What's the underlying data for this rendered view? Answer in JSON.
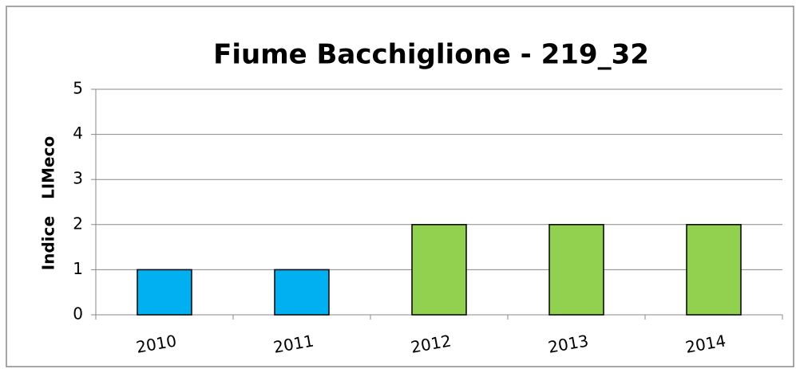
{
  "chart_data": {
    "type": "bar",
    "title": "Fiume Bacchiglione - 219_32",
    "y_label": "Indice   LIMeco",
    "categories": [
      "2010",
      "2011",
      "2012",
      "2013",
      "2014"
    ],
    "values": [
      1,
      1,
      2,
      2,
      2
    ],
    "colors": [
      "#00b0f0",
      "#00b0f0",
      "#92d050",
      "#92d050",
      "#92d050"
    ],
    "ylim": [
      0,
      5
    ],
    "yticks": [
      0,
      1,
      2,
      3,
      4,
      5
    ],
    "grid": true
  }
}
